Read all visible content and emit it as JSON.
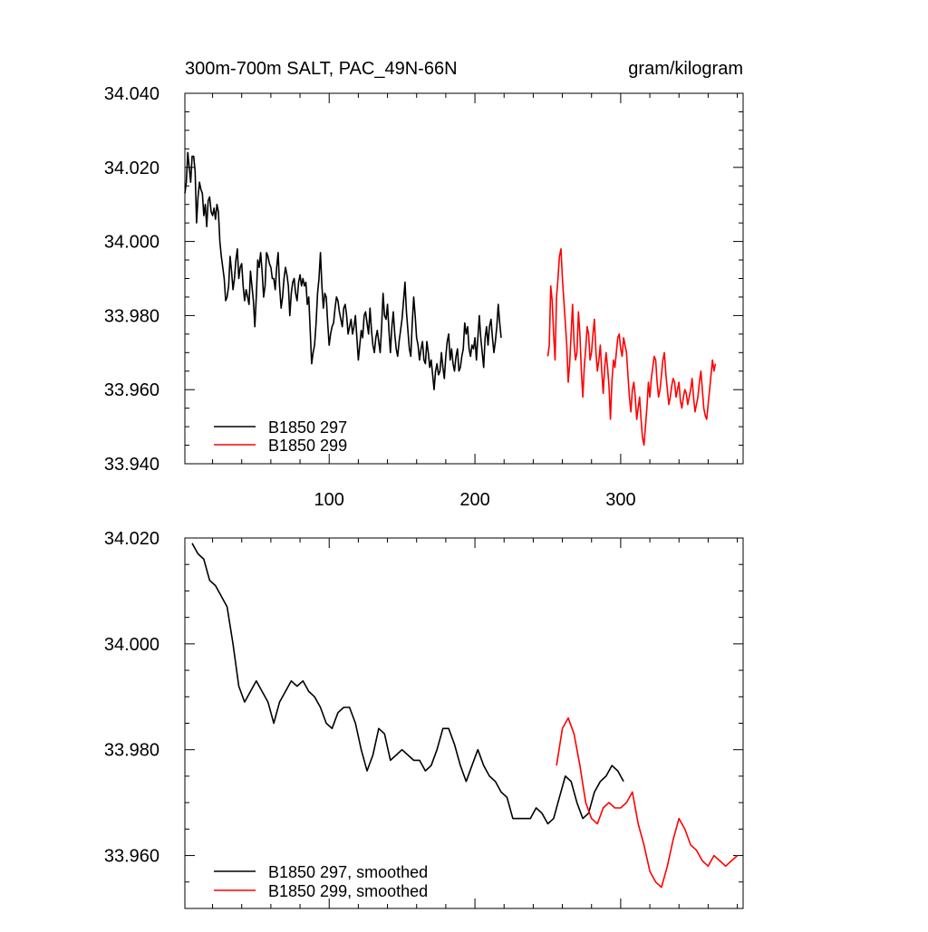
{
  "chart_data": [
    {
      "type": "line",
      "title": "300m-700m SALT, PAC_49N-66N",
      "units": "gram/kilogram",
      "xlim": [
        1,
        384
      ],
      "ylim": [
        33.94,
        34.04
      ],
      "x_tick_labels": [
        "100",
        "200",
        "300"
      ],
      "y_tick_labels": [
        "33.940",
        "33.960",
        "33.980",
        "34.000",
        "34.020",
        "34.040"
      ],
      "legend_position": "bottom-left",
      "series": [
        {
          "name": "B1850 297",
          "color": "#000000",
          "x_start": 1,
          "values": [
            34.013,
            34.016,
            34.024,
            34.02,
            34.016,
            34.023,
            34.023,
            34.019,
            34.005,
            34.012,
            34.016,
            34.014,
            34.013,
            34.007,
            34.01,
            34.004,
            34.011,
            34.012,
            34.008,
            34.007,
            34.009,
            34.006,
            34.01,
            34.008,
            34.0,
            33.996,
            33.993,
            33.99,
            33.984,
            33.985,
            33.988,
            33.996,
            33.992,
            33.987,
            33.99,
            33.995,
            33.998,
            33.99,
            33.993,
            33.994,
            33.988,
            33.984,
            33.987,
            33.985,
            33.983,
            33.992,
            33.988,
            33.984,
            33.977,
            33.985,
            33.995,
            33.993,
            33.997,
            33.992,
            33.985,
            33.988,
            33.997,
            33.996,
            33.994,
            33.993,
            33.99,
            33.99,
            33.987,
            33.993,
            33.997,
            33.988,
            33.982,
            33.985,
            33.99,
            33.993,
            33.991,
            33.988,
            33.98,
            33.986,
            33.989,
            33.99,
            33.986,
            33.984,
            33.989,
            33.991,
            33.988,
            33.99,
            33.988,
            33.989,
            33.983,
            33.985,
            33.976,
            33.967,
            33.97,
            33.972,
            33.978,
            33.986,
            33.99,
            33.997,
            33.988,
            33.982,
            33.986,
            33.985,
            33.978,
            33.972,
            33.975,
            33.977,
            33.978,
            33.982,
            33.985,
            33.984,
            33.981,
            33.979,
            33.977,
            33.982,
            33.983,
            33.98,
            33.975,
            33.977,
            33.979,
            33.975,
            33.977,
            33.98,
            33.974,
            33.968,
            33.972,
            33.976,
            33.974,
            33.98,
            33.981,
            33.978,
            33.975,
            33.982,
            33.976,
            33.972,
            33.97,
            33.974,
            33.976,
            33.973,
            33.97,
            33.977,
            33.986,
            33.98,
            33.979,
            33.983,
            33.976,
            33.97,
            33.977,
            33.981,
            33.975,
            33.971,
            33.969,
            33.973,
            33.976,
            33.979,
            33.984,
            33.989,
            33.981,
            33.976,
            33.971,
            33.969,
            33.978,
            33.985,
            33.98,
            33.974,
            33.972,
            33.968,
            33.971,
            33.973,
            33.968,
            33.967,
            33.973,
            33.97,
            33.966,
            33.968,
            33.964,
            33.96,
            33.965,
            33.967,
            33.964,
            33.965,
            33.97,
            33.966,
            33.963,
            33.969,
            33.973,
            33.975,
            33.968,
            33.971,
            33.967,
            33.965,
            33.969,
            33.971,
            33.965,
            33.966,
            33.969,
            33.971,
            33.978,
            33.975,
            33.977,
            33.971,
            33.969,
            33.972,
            33.971,
            33.974,
            33.968,
            33.974,
            33.98,
            33.974,
            33.97,
            33.966,
            33.974,
            33.977,
            33.972,
            33.977,
            33.979,
            33.974,
            33.97,
            33.973,
            33.977,
            33.983,
            33.978,
            33.974
          ]
        },
        {
          "name": "B1850 299",
          "color": "#ff0000",
          "x_start": 250,
          "values": [
            33.969,
            33.972,
            33.988,
            33.984,
            33.975,
            33.968,
            33.985,
            33.99,
            33.996,
            33.998,
            33.99,
            33.984,
            33.978,
            33.972,
            33.962,
            33.967,
            33.975,
            33.983,
            33.973,
            33.968,
            33.97,
            33.981,
            33.975,
            33.965,
            33.958,
            33.966,
            33.971,
            33.977,
            33.975,
            33.968,
            33.97,
            33.975,
            33.979,
            33.97,
            33.965,
            33.968,
            33.972,
            33.965,
            33.959,
            33.966,
            33.97,
            33.966,
            33.961,
            33.952,
            33.962,
            33.968,
            33.966,
            33.97,
            33.974,
            33.975,
            33.971,
            33.969,
            33.974,
            33.972,
            33.97,
            33.964,
            33.958,
            33.954,
            33.96,
            33.962,
            33.958,
            33.952,
            33.955,
            33.958,
            33.952,
            33.947,
            33.945,
            33.95,
            33.955,
            33.962,
            33.958,
            33.963,
            33.966,
            33.969,
            33.968,
            33.962,
            33.958,
            33.96,
            33.964,
            33.968,
            33.97,
            33.964,
            33.96,
            33.956,
            33.958,
            33.961,
            33.963,
            33.962,
            33.958,
            33.96,
            33.962,
            33.957,
            33.955,
            33.958,
            33.96,
            33.959,
            33.956,
            33.958,
            33.96,
            33.963,
            33.958,
            33.954,
            33.956,
            33.958,
            33.962,
            33.965,
            33.96,
            33.955,
            33.953,
            33.952,
            33.956,
            33.96,
            33.964,
            33.968,
            33.965,
            33.967
          ]
        }
      ]
    },
    {
      "type": "line",
      "xlim": [
        1,
        384
      ],
      "ylim": [
        33.95,
        34.02
      ],
      "y_tick_labels": [
        "33.960",
        "33.980",
        "34.000",
        "34.020"
      ],
      "legend_position": "bottom-left",
      "series": [
        {
          "name": "B1850 297, smoothed",
          "color": "#000000",
          "points": [
            [
              6,
              34.019
            ],
            [
              10,
              34.017
            ],
            [
              14,
              34.016
            ],
            [
              18,
              34.012
            ],
            [
              22,
              34.011
            ],
            [
              26,
              34.009
            ],
            [
              30,
              34.007
            ],
            [
              34,
              34.0
            ],
            [
              38,
              33.992
            ],
            [
              42,
              33.989
            ],
            [
              46,
              33.991
            ],
            [
              50,
              33.993
            ],
            [
              54,
              33.991
            ],
            [
              58,
              33.989
            ],
            [
              62,
              33.985
            ],
            [
              66,
              33.989
            ],
            [
              70,
              33.991
            ],
            [
              74,
              33.993
            ],
            [
              78,
              33.992
            ],
            [
              82,
              33.993
            ],
            [
              86,
              33.991
            ],
            [
              90,
              33.99
            ],
            [
              94,
              33.988
            ],
            [
              98,
              33.985
            ],
            [
              102,
              33.984
            ],
            [
              106,
              33.987
            ],
            [
              110,
              33.988
            ],
            [
              114,
              33.988
            ],
            [
              118,
              33.985
            ],
            [
              122,
              33.98
            ],
            [
              126,
              33.976
            ],
            [
              130,
              33.979
            ],
            [
              134,
              33.984
            ],
            [
              138,
              33.983
            ],
            [
              142,
              33.978
            ],
            [
              146,
              33.979
            ],
            [
              150,
              33.98
            ],
            [
              154,
              33.979
            ],
            [
              158,
              33.978
            ],
            [
              162,
              33.978
            ],
            [
              166,
              33.976
            ],
            [
              170,
              33.977
            ],
            [
              174,
              33.98
            ],
            [
              178,
              33.984
            ],
            [
              182,
              33.984
            ],
            [
              186,
              33.981
            ],
            [
              190,
              33.977
            ],
            [
              194,
              33.974
            ],
            [
              198,
              33.977
            ],
            [
              202,
              33.98
            ],
            [
              206,
              33.977
            ],
            [
              210,
              33.975
            ],
            [
              214,
              33.974
            ],
            [
              218,
              33.972
            ],
            [
              222,
              33.971
            ],
            [
              226,
              33.967
            ],
            [
              230,
              33.967
            ],
            [
              234,
              33.967
            ],
            [
              238,
              33.967
            ],
            [
              242,
              33.969
            ],
            [
              246,
              33.968
            ],
            [
              250,
              33.966
            ],
            [
              254,
              33.967
            ],
            [
              258,
              33.971
            ],
            [
              262,
              33.975
            ],
            [
              266,
              33.974
            ],
            [
              270,
              33.97
            ],
            [
              274,
              33.967
            ],
            [
              278,
              33.968
            ],
            [
              282,
              33.972
            ],
            [
              286,
              33.974
            ],
            [
              290,
              33.975
            ],
            [
              294,
              33.977
            ],
            [
              298,
              33.976
            ],
            [
              302,
              33.974
            ]
          ]
        },
        {
          "name": "B1850 299, smoothed",
          "color": "#ff0000",
          "points": [
            [
              256,
              33.977
            ],
            [
              260,
              33.984
            ],
            [
              264,
              33.986
            ],
            [
              268,
              33.983
            ],
            [
              272,
              33.977
            ],
            [
              276,
              33.97
            ],
            [
              280,
              33.967
            ],
            [
              284,
              33.966
            ],
            [
              288,
              33.969
            ],
            [
              292,
              33.97
            ],
            [
              296,
              33.969
            ],
            [
              300,
              33.969
            ],
            [
              304,
              33.97
            ],
            [
              308,
              33.972
            ],
            [
              312,
              33.966
            ],
            [
              316,
              33.962
            ],
            [
              320,
              33.957
            ],
            [
              324,
              33.955
            ],
            [
              328,
              33.954
            ],
            [
              332,
              33.958
            ],
            [
              336,
              33.963
            ],
            [
              340,
              33.967
            ],
            [
              344,
              33.965
            ],
            [
              348,
              33.962
            ],
            [
              352,
              33.961
            ],
            [
              356,
              33.959
            ],
            [
              360,
              33.958
            ],
            [
              364,
              33.96
            ],
            [
              368,
              33.959
            ],
            [
              372,
              33.958
            ],
            [
              376,
              33.959
            ],
            [
              380,
              33.96
            ]
          ]
        }
      ]
    }
  ]
}
